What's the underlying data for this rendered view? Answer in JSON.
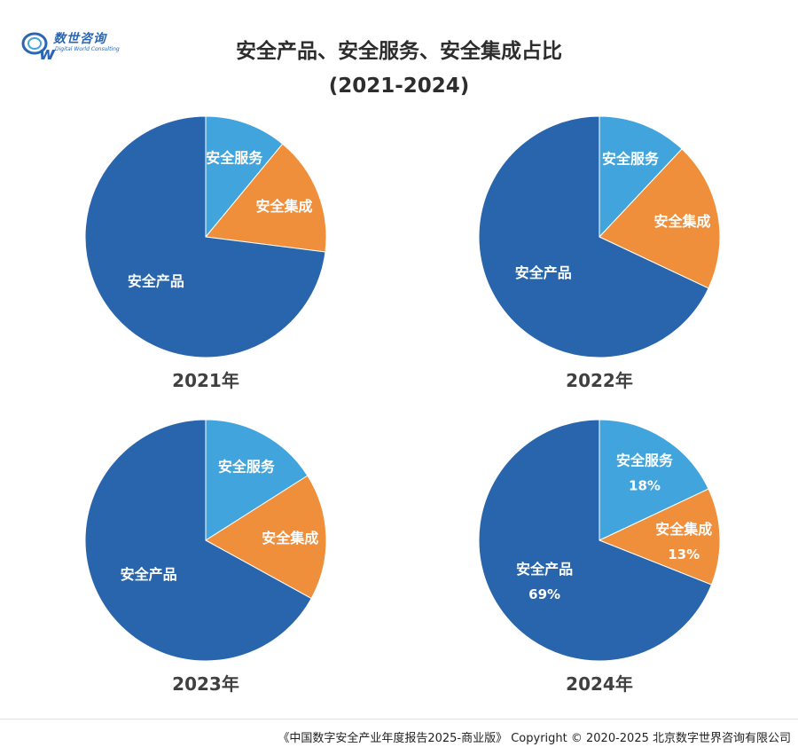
{
  "header": {
    "logo_cn": "数世咨询",
    "logo_en": "Digital World Consulting",
    "title": "安全产品、安全服务、安全集成占比",
    "subtitle": "(2021-2024)"
  },
  "footer": {
    "text": "《中国数字安全产业年度报告2025-商业版》 Copyright © 2020-2025 北京数字世界咨询有限公司"
  },
  "colors": {
    "安全服务": "#41a4dc",
    "安全集成": "#ef8f3b",
    "安全产品": "#2865ac",
    "label": "#ffffff",
    "year_label": "#404040"
  },
  "chart_data": [
    {
      "type": "pie",
      "title": "2021年",
      "slices": [
        {
          "name": "安全服务",
          "value": 11,
          "label": "安全服务",
          "value_label": ""
        },
        {
          "name": "安全集成",
          "value": 16,
          "label": "安全集成",
          "value_label": ""
        },
        {
          "name": "安全产品",
          "value": 73,
          "label": "安全产品",
          "value_label": ""
        }
      ]
    },
    {
      "type": "pie",
      "title": "2022年",
      "slices": [
        {
          "name": "安全服务",
          "value": 12,
          "label": "安全服务",
          "value_label": ""
        },
        {
          "name": "安全集成",
          "value": 20,
          "label": "安全集成",
          "value_label": ""
        },
        {
          "name": "安全产品",
          "value": 68,
          "label": "安全产品",
          "value_label": ""
        }
      ]
    },
    {
      "type": "pie",
      "title": "2023年",
      "slices": [
        {
          "name": "安全服务",
          "value": 16,
          "label": "安全服务",
          "value_label": ""
        },
        {
          "name": "安全集成",
          "value": 17,
          "label": "安全集成",
          "value_label": ""
        },
        {
          "name": "安全产品",
          "value": 67,
          "label": "安全产品",
          "value_label": ""
        }
      ]
    },
    {
      "type": "pie",
      "title": "2024年",
      "slices": [
        {
          "name": "安全服务",
          "value": 18,
          "label": "安全服务",
          "value_label": "18%"
        },
        {
          "name": "安全集成",
          "value": 13,
          "label": "安全集成",
          "value_label": "13%"
        },
        {
          "name": "安全产品",
          "value": 69,
          "label": "安全产品",
          "value_label": "69%"
        }
      ]
    }
  ]
}
